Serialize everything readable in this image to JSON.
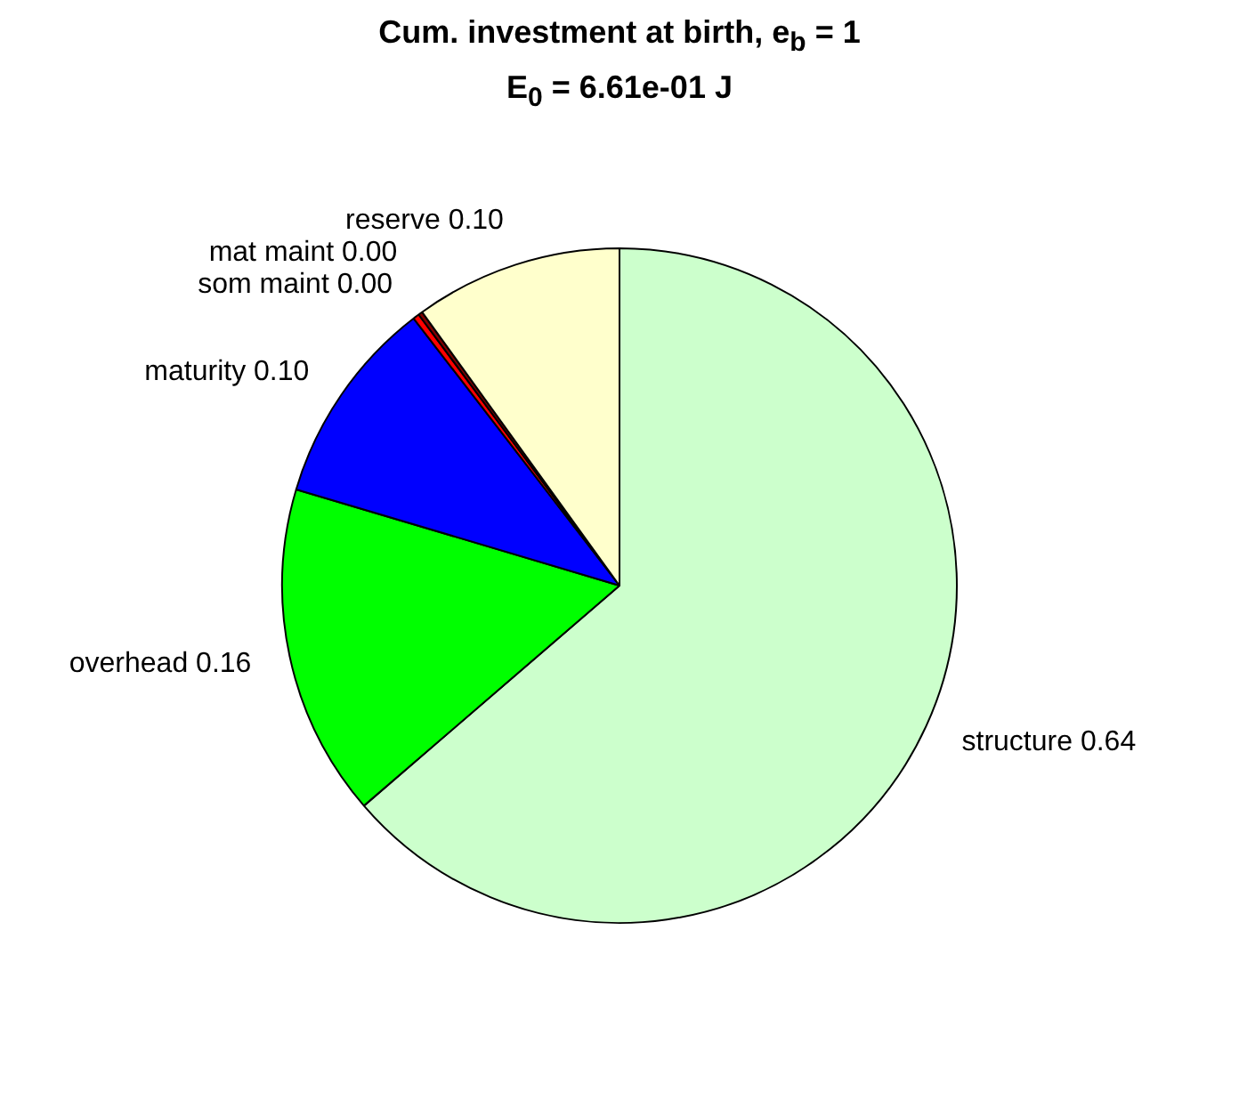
{
  "chart_data": {
    "type": "pie",
    "title": "Cum. investment at birth, e$_{b}$ = 1",
    "subtitle": "E$_{0}$ = 6.61e-01 J",
    "categories": [
      "structure",
      "overhead",
      "maturity",
      "som maint",
      "mat maint",
      "reserve"
    ],
    "values": [
      0.64,
      0.16,
      0.1,
      0.003,
      0.002,
      0.1
    ],
    "value_labels": [
      "0.64",
      "0.16",
      "0.10",
      "0.00",
      "0.00",
      "0.10"
    ],
    "colors": [
      "#ccffcc",
      "#00ff00",
      "#0000ff",
      "#ff0000",
      "#800000",
      "#ffffcc"
    ],
    "legend": false
  }
}
